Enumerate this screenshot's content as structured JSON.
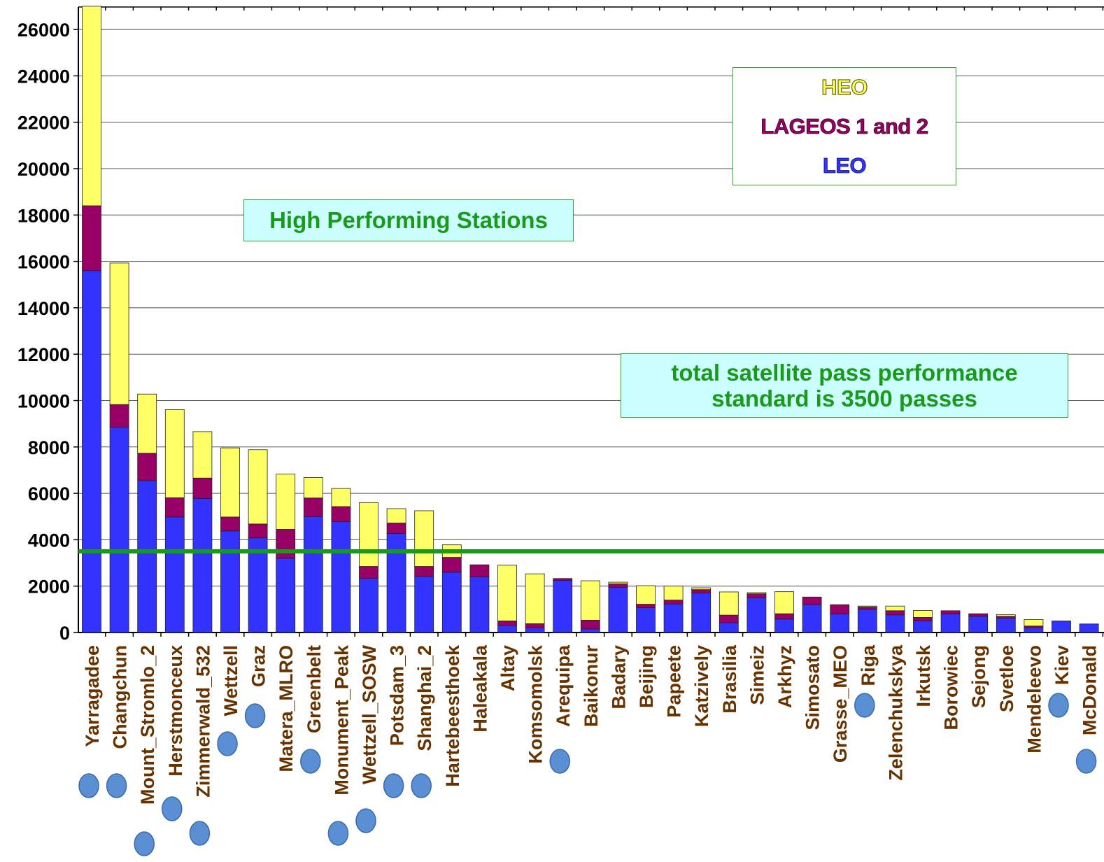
{
  "colors": {
    "heo": "#ffff66",
    "lageos": "#990066",
    "leo": "#3333ff",
    "standard_line": "#1a9a1a",
    "station_label": "#663300",
    "marker": "#5b8fd4",
    "box_text": "#1a9a1a",
    "box_fill": "#ccffff",
    "box_border": "#2aa62a"
  },
  "legend": {
    "heo": "HEO",
    "lageos": "LAGEOS 1 and 2",
    "leo": "LEO"
  },
  "annotations": {
    "high_performing": "High Performing Stations",
    "standard_line1": "total satellite pass performance",
    "standard_line2": "standard is 3500 passes"
  },
  "chart_data": {
    "type": "bar",
    "stacked": true,
    "categories": [
      "Yarragadee",
      "Changchun",
      "Mount_Stromlo_2",
      "Herstmonceux",
      "Zimmerwald_532",
      "Wettzell",
      "Graz",
      "Matera_MLRO",
      "Greenbelt",
      "Monument_Peak",
      "Wettzell_SOSW",
      "Potsdam_3",
      "Shanghai_2",
      "Hartebeesthoek",
      "Haleakala",
      "Altay",
      "Komsomolsk",
      "Arequipa",
      "Baikonur",
      "Badary",
      "Beijing",
      "Papeete",
      "Katzively",
      "Brasilia",
      "Simeiz",
      "Arkhyz",
      "Simosato",
      "Grasse_MEO",
      "Riga",
      "Zelenchukskya",
      "Irkutsk",
      "Borowiec",
      "Sejong",
      "Svetloe",
      "Mendeleevo",
      "Kiev",
      "McDonald"
    ],
    "series": [
      {
        "name": "LEO",
        "values": [
          15600,
          8850,
          6550,
          4980,
          5780,
          4380,
          4080,
          3200,
          5000,
          4780,
          2330,
          4270,
          2420,
          2600,
          2400,
          300,
          200,
          2250,
          150,
          1950,
          1070,
          1230,
          1700,
          420,
          1500,
          580,
          1200,
          800,
          1000,
          760,
          500,
          800,
          700,
          620,
          200,
          500,
          370
        ]
      },
      {
        "name": "LAGEOS 1 and 2",
        "values": [
          2800,
          980,
          1180,
          830,
          880,
          600,
          600,
          1250,
          800,
          650,
          520,
          450,
          430,
          640,
          520,
          200,
          180,
          80,
          380,
          150,
          150,
          170,
          150,
          330,
          170,
          230,
          330,
          400,
          100,
          180,
          150,
          140,
          110,
          80,
          80,
          0,
          0
        ]
      },
      {
        "name": "HEO",
        "values": [
          8600,
          6100,
          2550,
          3800,
          2000,
          2980,
          3200,
          2380,
          880,
          780,
          2750,
          620,
          2400,
          540,
          0,
          2400,
          2150,
          0,
          1700,
          70,
          800,
          600,
          80,
          1000,
          50,
          950,
          0,
          0,
          40,
          200,
          300,
          0,
          0,
          70,
          280,
          0,
          0
        ]
      }
    ],
    "markers_below": [
      "Yarragadee",
      "Changchun",
      "Mount_Stromlo_2",
      "Herstmonceux",
      "Zimmerwald_532",
      "Wettzell",
      "Graz",
      "Greenbelt",
      "Monument_Peak",
      "Wettzell_SOSW",
      "Potsdam_3",
      "Shanghai_2",
      "Arequipa",
      "Riga",
      "Kiev",
      "McDonald"
    ],
    "ylim": [
      0,
      27000
    ],
    "yticks": [
      0,
      2000,
      4000,
      6000,
      8000,
      10000,
      12000,
      14000,
      16000,
      18000,
      20000,
      22000,
      24000,
      26000
    ],
    "reference_line": {
      "value": 3500
    },
    "grid": true
  }
}
